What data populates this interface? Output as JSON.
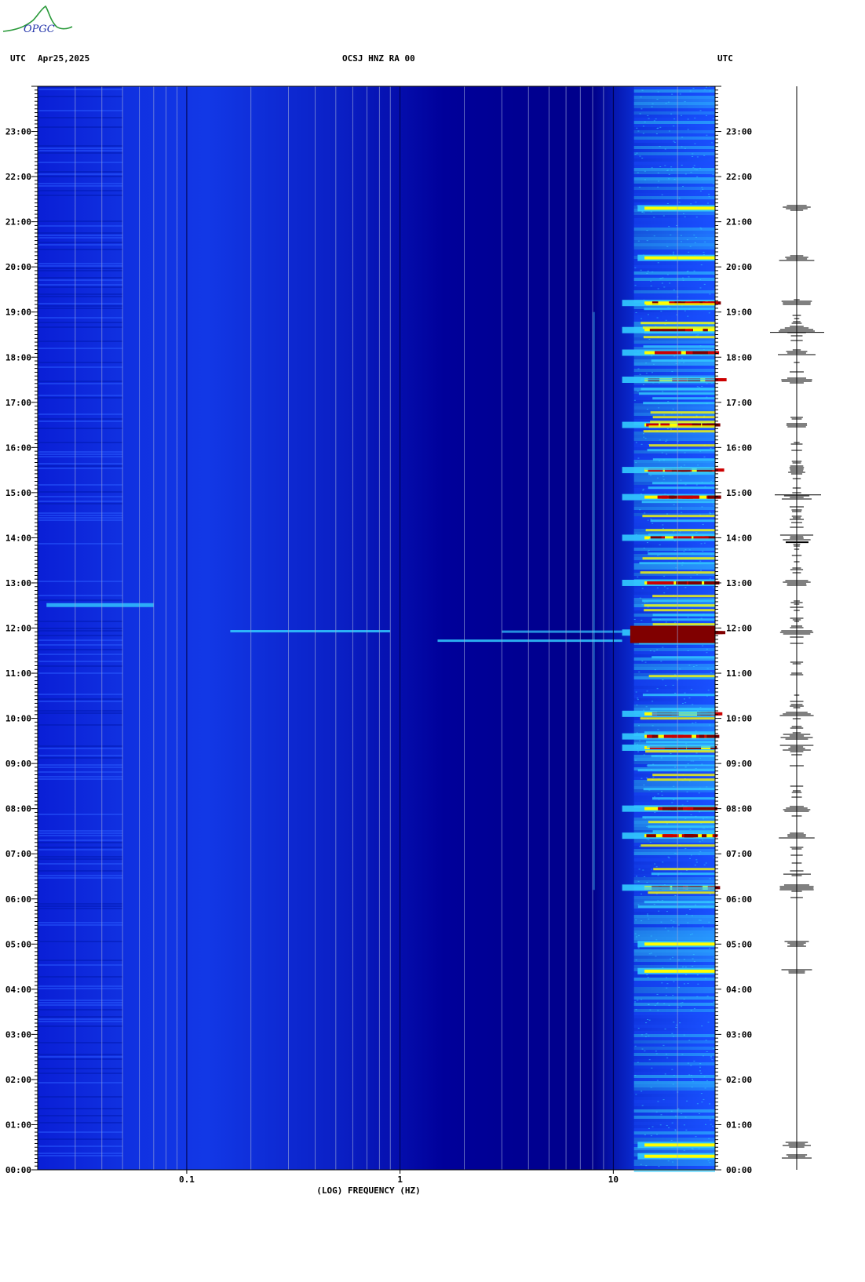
{
  "logo": {
    "text": "OPGC",
    "icon": "volcano-logo-icon"
  },
  "header": {
    "left_tz": "UTC",
    "date": "Apr25,2025",
    "station": "OCSJ HNZ RA 00",
    "right_tz": "UTC"
  },
  "chart_data": {
    "type": "heatmap",
    "title": "OCSJ HNZ RA 00",
    "xlabel": "(LOG) FREQUENCY (HZ)",
    "ylabel": "UTC",
    "x_scale": "log",
    "xlim": [
      0.02,
      30
    ],
    "x_ticks": [
      {
        "value": 0.1,
        "label": "0.1"
      },
      {
        "value": 1,
        "label": "1"
      },
      {
        "value": 10,
        "label": "10"
      }
    ],
    "ylim": [
      "00:00",
      "24:00"
    ],
    "y_ticks": [
      "00:00",
      "01:00",
      "02:00",
      "03:00",
      "04:00",
      "05:00",
      "06:00",
      "07:00",
      "08:00",
      "09:00",
      "10:00",
      "11:00",
      "12:00",
      "13:00",
      "14:00",
      "15:00",
      "16:00",
      "17:00",
      "18:00",
      "19:00",
      "20:00",
      "21:00",
      "22:00",
      "23:00"
    ],
    "colormap": [
      "#00007a",
      "#0000cc",
      "#1a4dff",
      "#33ccff",
      "#ffff00",
      "#cc0000",
      "#800000"
    ],
    "events_hours_utc": [
      0.3,
      0.55,
      4.4,
      5.0,
      6.25,
      7.4,
      8.0,
      9.35,
      9.6,
      10.1,
      11.9,
      13.0,
      14.0,
      14.9,
      15.5,
      16.5,
      17.5,
      18.1,
      18.6,
      19.2,
      20.2,
      21.3
    ],
    "grid": "vertical gridlines at 0.1-step log decades",
    "trace_panel": "seismogram trace on right, time axis aligned"
  }
}
